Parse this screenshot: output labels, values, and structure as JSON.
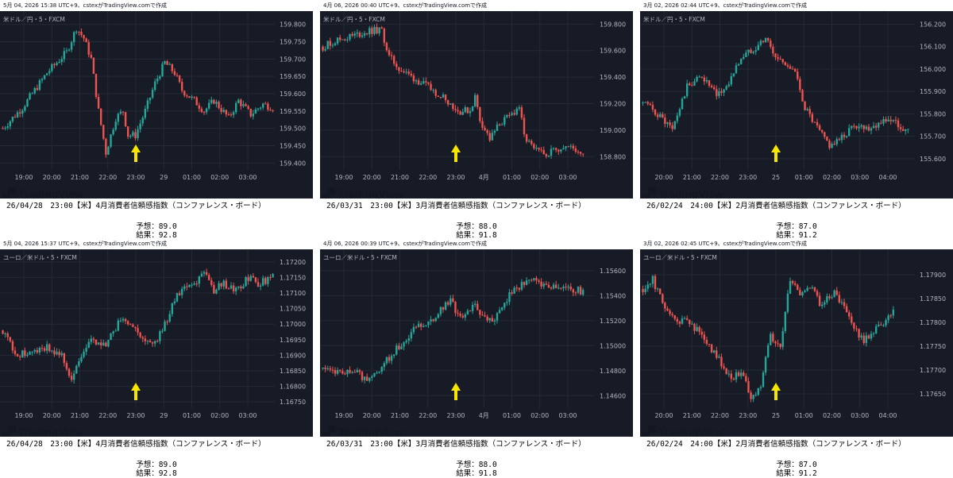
{
  "colors": {
    "bg": "#171b26",
    "grid": "#262a36",
    "up": "#26a69a",
    "down": "#ef5350",
    "axis_text": "#b2b5be",
    "arrow": "#f7e600"
  },
  "panels": [
    {
      "header": "5月 04, 2026 15:38 UTC+9、cstexがTradingView.comで作成",
      "symbol": "米ドル／円・5・FXCM",
      "logo": "TradingView",
      "event": "26/04/28　23:00【米】4月消費者信頼感指数（コンファレンス・ボード）",
      "forecast": "予想：89.0",
      "actual": "結果：92.8",
      "chart_data": {
        "type": "candlestick",
        "y_ticks": [
          "159.800",
          "159.750",
          "159.700",
          "159.650",
          "159.600",
          "159.550",
          "159.500",
          "159.450",
          "159.400"
        ],
        "ylim": [
          159.38,
          159.82
        ],
        "x_ticks": [
          "19:00",
          "20:00",
          "21:00",
          "22:00",
          "23:00",
          "29",
          "01:00",
          "02:00",
          "03:00"
        ],
        "path": [
          [
            0,
            159.5
          ],
          [
            8,
            159.56
          ],
          [
            18,
            159.66
          ],
          [
            26,
            159.72
          ],
          [
            30,
            159.79
          ],
          [
            33,
            159.76
          ],
          [
            36,
            159.7
          ],
          [
            39,
            159.55
          ],
          [
            42,
            159.43
          ],
          [
            46,
            159.53
          ],
          [
            49,
            159.55
          ],
          [
            51,
            159.48
          ],
          [
            54,
            159.48
          ],
          [
            58,
            159.55
          ],
          [
            62,
            159.63
          ],
          [
            66,
            159.69
          ],
          [
            70,
            159.66
          ],
          [
            73,
            159.61
          ],
          [
            78,
            159.58
          ],
          [
            82,
            159.55
          ],
          [
            86,
            159.58
          ],
          [
            92,
            159.53
          ],
          [
            96,
            159.58
          ],
          [
            101,
            159.54
          ],
          [
            106,
            159.57
          ],
          [
            110,
            159.56
          ]
        ],
        "arrow_at": "23:00"
      }
    },
    {
      "header": "4月 06, 2026 00:40 UTC+9、cstexがTradingView.comで作成",
      "symbol": "米ドル／円・5・FXCM",
      "logo": "TradingView",
      "event": "26/03/31　23:00【米】3月消費者信頼感指数（コンファレンス・ボード）",
      "forecast": "予想：88.0",
      "actual": "結果：91.8",
      "chart_data": {
        "type": "candlestick",
        "y_ticks": [
          "159.800",
          "159.600",
          "159.400",
          "159.200",
          "159.000",
          "158.800"
        ],
        "ylim": [
          158.7,
          159.85
        ],
        "x_ticks": [
          "19:00",
          "20:00",
          "21:00",
          "22:00",
          "23:00",
          "4月",
          "01:00",
          "02:00",
          "03:00"
        ],
        "path": [
          [
            0,
            159.63
          ],
          [
            6,
            159.68
          ],
          [
            14,
            159.72
          ],
          [
            20,
            159.75
          ],
          [
            24,
            159.75
          ],
          [
            27,
            159.55
          ],
          [
            32,
            159.45
          ],
          [
            38,
            159.38
          ],
          [
            44,
            159.31
          ],
          [
            50,
            159.24
          ],
          [
            55,
            159.14
          ],
          [
            60,
            159.15
          ],
          [
            62,
            159.25
          ],
          [
            64,
            159.08
          ],
          [
            68,
            158.93
          ],
          [
            72,
            159.05
          ],
          [
            76,
            159.1
          ],
          [
            80,
            159.18
          ],
          [
            82,
            158.95
          ],
          [
            86,
            158.85
          ],
          [
            90,
            158.82
          ],
          [
            94,
            158.85
          ],
          [
            98,
            158.88
          ],
          [
            102,
            158.86
          ],
          [
            106,
            158.83
          ]
        ],
        "arrow_at": "23:00"
      }
    },
    {
      "header": "3月 02, 2026 02:44 UTC+9、cstexがTradingView.comで作成",
      "symbol": "米ドル／円・5・FXCM",
      "logo": "TradingView",
      "event": "26/02/24　24:00【米】2月消費者信頼感指数（コンファレンス・ボード）",
      "forecast": "予想：87.0",
      "actual": "結果：91.2",
      "chart_data": {
        "type": "candlestick",
        "y_ticks": [
          "156.200",
          "156.100",
          "156.000",
          "155.900",
          "155.800",
          "155.700",
          "155.600"
        ],
        "ylim": [
          155.55,
          156.23
        ],
        "x_ticks": [
          "20:00",
          "21:00",
          "22:00",
          "23:00",
          "25",
          "01:00",
          "02:00",
          "03:00",
          "04:00"
        ],
        "path": [
          [
            0,
            155.85
          ],
          [
            6,
            155.8
          ],
          [
            12,
            155.73
          ],
          [
            18,
            155.92
          ],
          [
            24,
            155.97
          ],
          [
            30,
            155.88
          ],
          [
            34,
            155.92
          ],
          [
            40,
            156.05
          ],
          [
            46,
            156.1
          ],
          [
            50,
            156.14
          ],
          [
            54,
            156.05
          ],
          [
            58,
            156.03
          ],
          [
            62,
            155.98
          ],
          [
            66,
            155.83
          ],
          [
            70,
            155.75
          ],
          [
            76,
            155.66
          ],
          [
            80,
            155.68
          ],
          [
            86,
            155.75
          ],
          [
            92,
            155.74
          ],
          [
            96,
            155.76
          ],
          [
            100,
            155.78
          ],
          [
            104,
            155.75
          ],
          [
            108,
            155.72
          ]
        ],
        "arrow_at": "25"
      }
    },
    {
      "header": "5月 04, 2026 15:37 UTC+9、cstexがTradingView.comで作成",
      "symbol": "ユーロ／米ドル・5・FXCM",
      "logo": "TradingView",
      "event": "26/04/28　23:00【米】4月消費者信頼感指数（コンファレンス・ボード）",
      "forecast": "予想：89.0",
      "actual": "結果：92.8",
      "chart_data": {
        "type": "candlestick",
        "y_ticks": [
          "1.17200",
          "1.17150",
          "1.17100",
          "1.17050",
          "1.17000",
          "1.16950",
          "1.16900",
          "1.16850",
          "1.16800",
          "1.16750"
        ],
        "ylim": [
          1.1673,
          1.1722
        ],
        "x_ticks": [
          "19:00",
          "20:00",
          "21:00",
          "22:00",
          "23:00",
          "29",
          "01:00",
          "02:00",
          "03:00"
        ],
        "path": [
          [
            0,
            1.1698
          ],
          [
            6,
            1.169
          ],
          [
            12,
            1.1691
          ],
          [
            18,
            1.1693
          ],
          [
            24,
            1.169
          ],
          [
            28,
            1.1682
          ],
          [
            32,
            1.169
          ],
          [
            36,
            1.1695
          ],
          [
            42,
            1.1693
          ],
          [
            48,
            1.1702
          ],
          [
            54,
            1.1698
          ],
          [
            58,
            1.1695
          ],
          [
            62,
            1.1694
          ],
          [
            66,
            1.17
          ],
          [
            70,
            1.1708
          ],
          [
            74,
            1.1712
          ],
          [
            78,
            1.1713
          ],
          [
            82,
            1.1716
          ],
          [
            86,
            1.1711
          ],
          [
            90,
            1.1713
          ],
          [
            96,
            1.1711
          ],
          [
            100,
            1.1715
          ],
          [
            104,
            1.1713
          ],
          [
            110,
            1.1715
          ]
        ],
        "arrow_at": "23:00"
      }
    },
    {
      "header": "4月 06, 2026 00:39 UTC+9、cstexがTradingView.comで作成",
      "symbol": "ユーロ／米ドル・5・FXCM",
      "logo": "TradingView",
      "event": "26/03/31　23:00【米】3月消費者信頼感指数（コンファレンス・ボード）",
      "forecast": "予想：88.0",
      "actual": "結果：91.8",
      "chart_data": {
        "type": "candlestick",
        "y_ticks": [
          "1.15600",
          "1.15400",
          "1.15200",
          "1.15000",
          "1.14800",
          "1.14600"
        ],
        "ylim": [
          1.145,
          1.1572
        ],
        "x_ticks": [
          "19:00",
          "20:00",
          "21:00",
          "22:00",
          "23:00",
          "4月",
          "01:00",
          "02:00",
          "03:00"
        ],
        "path": [
          [
            0,
            1.1482
          ],
          [
            8,
            1.1479
          ],
          [
            14,
            1.1478
          ],
          [
            18,
            1.1472
          ],
          [
            22,
            1.148
          ],
          [
            28,
            1.1493
          ],
          [
            34,
            1.1505
          ],
          [
            38,
            1.1515
          ],
          [
            44,
            1.152
          ],
          [
            48,
            1.153
          ],
          [
            52,
            1.1536
          ],
          [
            56,
            1.1522
          ],
          [
            62,
            1.1532
          ],
          [
            66,
            1.1523
          ],
          [
            70,
            1.152
          ],
          [
            74,
            1.1535
          ],
          [
            78,
            1.1545
          ],
          [
            82,
            1.155
          ],
          [
            86,
            1.1553
          ],
          [
            90,
            1.1549
          ],
          [
            96,
            1.1547
          ],
          [
            102,
            1.1545
          ],
          [
            106,
            1.1543
          ]
        ],
        "arrow_at": "23:00"
      }
    },
    {
      "header": "3月 02, 2026 02:45 UTC+9、cstexがTradingView.comで作成",
      "symbol": "ユーロ／米ドル・5・FXCM",
      "logo": "TradingView",
      "event": "26/02/24　24:00【米】2月消費者信頼感指数（コンファレンス・ボード）",
      "forecast": "予想：87.0",
      "actual": "結果：91.2",
      "chart_data": {
        "type": "candlestick",
        "y_ticks": [
          "1.17900",
          "1.17850",
          "1.17800",
          "1.17750",
          "1.17700",
          "1.17650"
        ],
        "ylim": [
          1.1762,
          1.1794
        ],
        "x_ticks": [
          "20:00",
          "21:00",
          "22:00",
          "23:00",
          "25",
          "01:00",
          "02:00",
          "03:00",
          "04:00"
        ],
        "path": [
          [
            0,
            1.1787
          ],
          [
            4,
            1.1789
          ],
          [
            8,
            1.1784
          ],
          [
            14,
            1.178
          ],
          [
            18,
            1.1781
          ],
          [
            24,
            1.1777
          ],
          [
            30,
            1.1773
          ],
          [
            36,
            1.1768
          ],
          [
            40,
            1.177
          ],
          [
            44,
            1.1764
          ],
          [
            48,
            1.1767
          ],
          [
            52,
            1.1777
          ],
          [
            56,
            1.1775
          ],
          [
            60,
            1.1789
          ],
          [
            64,
            1.1786
          ],
          [
            68,
            1.1788
          ],
          [
            72,
            1.1784
          ],
          [
            78,
            1.1786
          ],
          [
            82,
            1.1783
          ],
          [
            86,
            1.1779
          ],
          [
            90,
            1.1776
          ],
          [
            94,
            1.1778
          ],
          [
            98,
            1.178
          ],
          [
            102,
            1.1783
          ]
        ],
        "arrow_at": "25"
      }
    }
  ]
}
